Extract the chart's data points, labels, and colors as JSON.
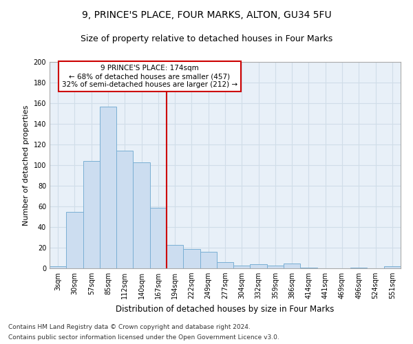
{
  "title1": "9, PRINCE'S PLACE, FOUR MARKS, ALTON, GU34 5FU",
  "title2": "Size of property relative to detached houses in Four Marks",
  "xlabel": "Distribution of detached houses by size in Four Marks",
  "ylabel": "Number of detached properties",
  "categories": [
    "3sqm",
    "30sqm",
    "57sqm",
    "85sqm",
    "112sqm",
    "140sqm",
    "167sqm",
    "194sqm",
    "222sqm",
    "249sqm",
    "277sqm",
    "304sqm",
    "332sqm",
    "359sqm",
    "386sqm",
    "414sqm",
    "441sqm",
    "469sqm",
    "496sqm",
    "524sqm",
    "551sqm"
  ],
  "values": [
    2,
    55,
    104,
    157,
    114,
    103,
    59,
    23,
    19,
    16,
    6,
    3,
    4,
    3,
    5,
    1,
    0,
    0,
    1,
    0,
    2
  ],
  "bar_color": "#ccddf0",
  "bar_edge_color": "#7aafd4",
  "grid_color": "#d0dde8",
  "background_color": "#e8f0f8",
  "vline_x": 6.5,
  "vline_color": "#cc0000",
  "annotation_text": "9 PRINCE'S PLACE: 174sqm\n← 68% of detached houses are smaller (457)\n32% of semi-detached houses are larger (212) →",
  "annotation_box_color": "#cc0000",
  "ylim": [
    0,
    200
  ],
  "yticks": [
    0,
    20,
    40,
    60,
    80,
    100,
    120,
    140,
    160,
    180,
    200
  ],
  "footer1": "Contains HM Land Registry data © Crown copyright and database right 2024.",
  "footer2": "Contains public sector information licensed under the Open Government Licence v3.0.",
  "title1_fontsize": 10,
  "title2_fontsize": 9,
  "xlabel_fontsize": 8.5,
  "ylabel_fontsize": 8,
  "tick_fontsize": 7,
  "annotation_fontsize": 7.5,
  "footer_fontsize": 6.5
}
